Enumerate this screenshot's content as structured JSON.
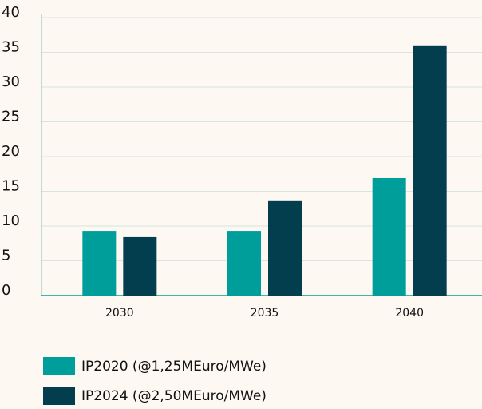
{
  "chart_data": {
    "type": "bar",
    "categories": [
      "2030",
      "2035",
      "2040"
    ],
    "series": [
      {
        "name": "IP2020 (@1,25MEuro/MWe)",
        "color": "#009e9a",
        "values": [
          9.3,
          9.3,
          16.9
        ]
      },
      {
        "name": "IP2024 (@2,50MEuro/MWe)",
        "color": "#023e4e",
        "values": [
          8.4,
          13.7,
          36
        ]
      }
    ],
    "ylim": [
      0,
      40
    ],
    "yticks": [
      0,
      5,
      10,
      15,
      20,
      25,
      30,
      35,
      40
    ],
    "grid": true
  }
}
